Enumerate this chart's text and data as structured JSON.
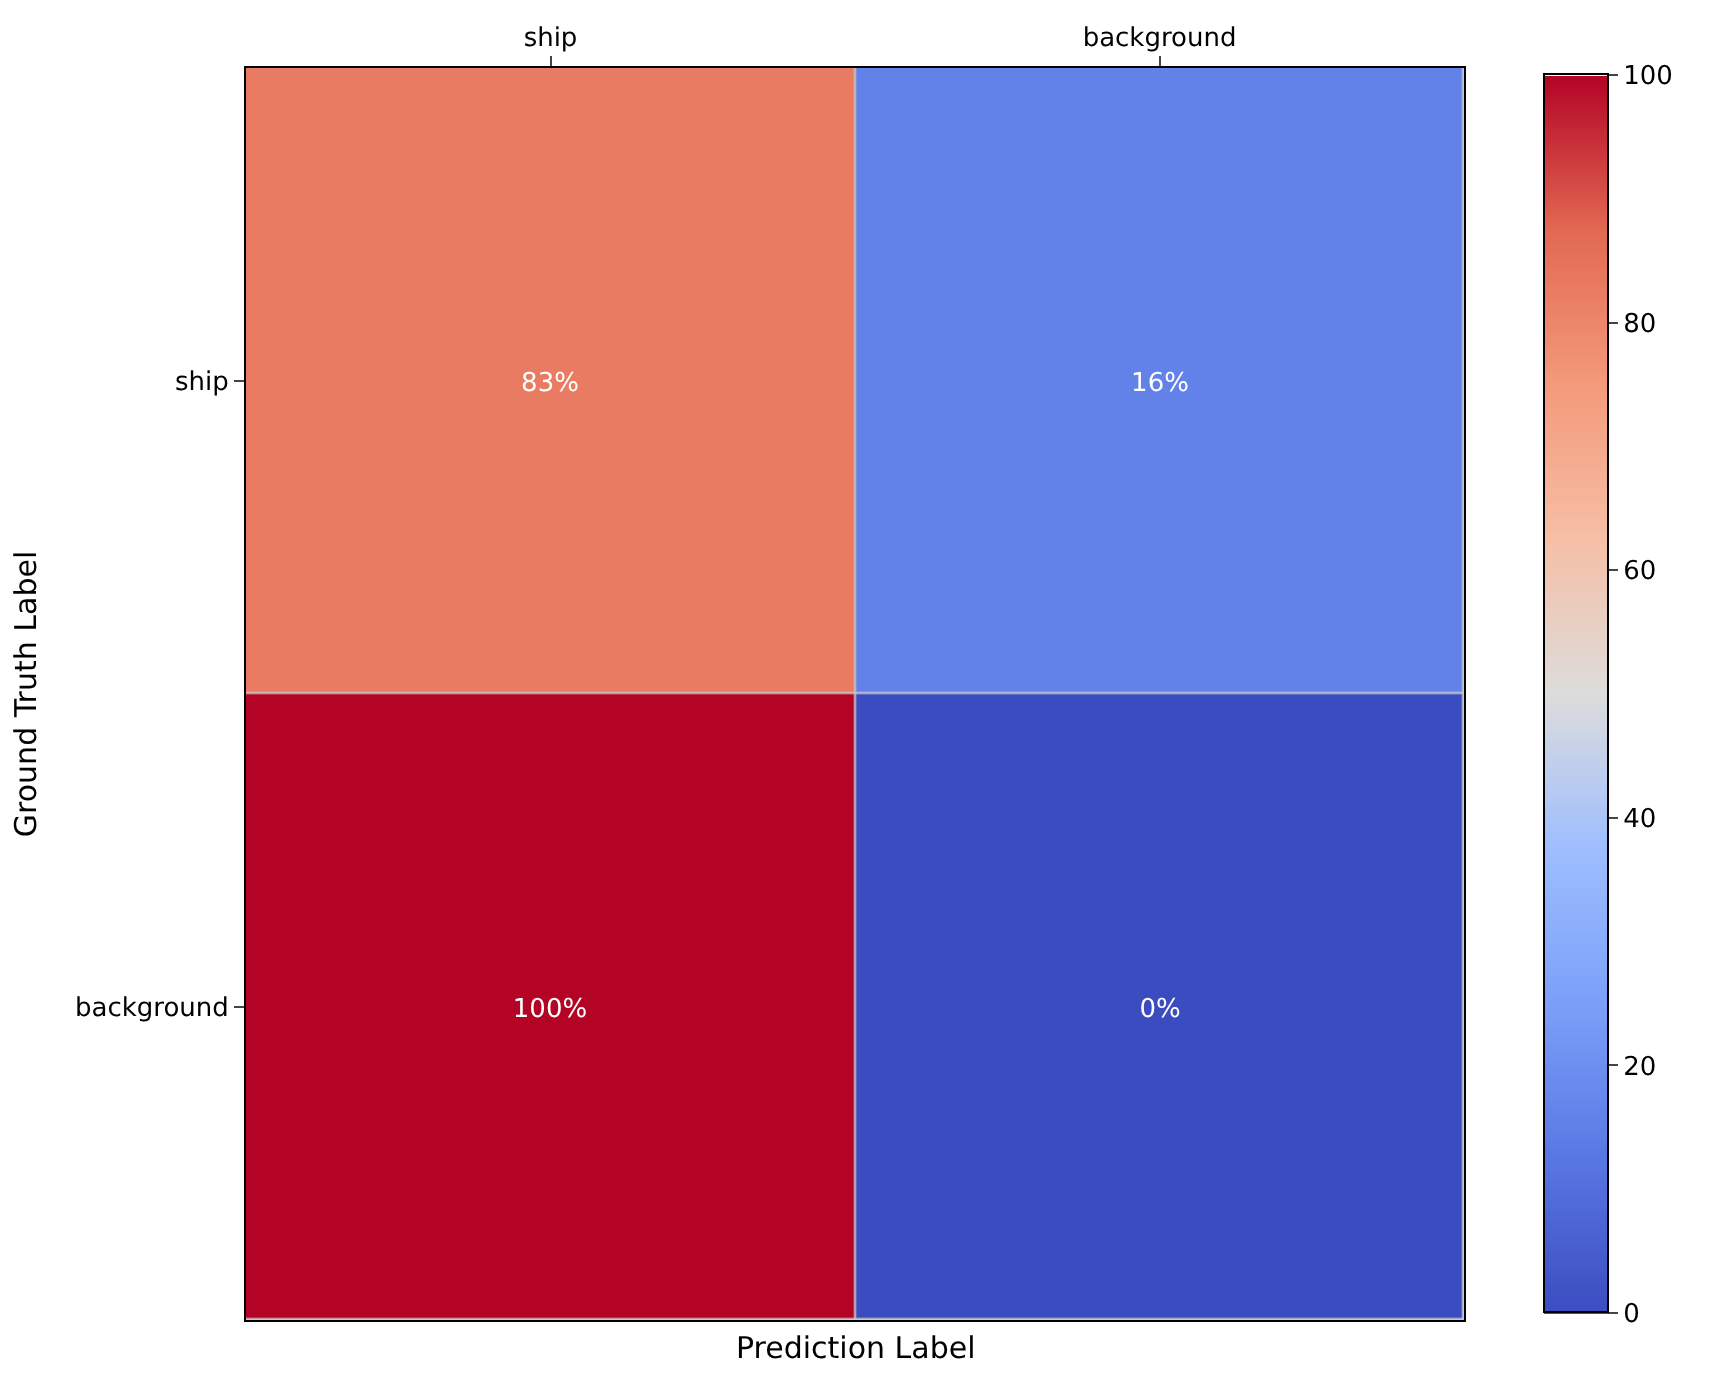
{
  "chart_data": {
    "type": "heatmap",
    "categories": [
      "ship",
      "background"
    ],
    "y_categories": [
      "ship",
      "background"
    ],
    "cells": [
      [
        83,
        16
      ],
      [
        100,
        0
      ]
    ],
    "cell_labels": [
      [
        "83%",
        "16%"
      ],
      [
        "100%",
        "0%"
      ]
    ],
    "xlabel": "Prediction Label",
    "ylabel": "Ground Truth Label",
    "clim": [
      0,
      100
    ],
    "cticks": [
      0,
      20,
      40,
      60,
      80,
      100
    ]
  }
}
